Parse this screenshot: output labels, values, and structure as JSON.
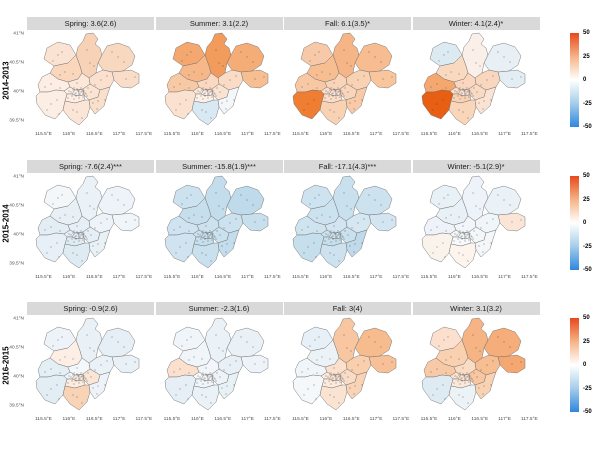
{
  "colors": {
    "background": "#FFFFFF",
    "strip_bg": "#D9D9D9",
    "strip_text": "#1A1A1A",
    "axis_text": "#4D4D4D",
    "row_label": "#000000",
    "map_border": "#6E6E6E",
    "dot": "#3A3A3A",
    "bar_high": "#E8481B",
    "bar_mid": "#FFFFFF",
    "bar_low": "#2F86DF"
  },
  "x_ticks": [
    "115.5°E",
    "116°E",
    "116.5°E",
    "117°E",
    "117.5°E"
  ],
  "y_ticks": [
    "41°N",
    "40.5°N",
    "40°N",
    "39.5°N"
  ],
  "colorbar": {
    "ticks": [
      "50",
      "25",
      "0",
      "-25",
      "-50"
    ]
  },
  "districts": [
    "yanqing",
    "huairou",
    "miyun",
    "pinggu",
    "changping",
    "shunyi",
    "mentougou",
    "haidian",
    "shijingshan",
    "xicheng",
    "dongcheng",
    "chaoyang",
    "fengtai",
    "tongzhou",
    "fangshan",
    "daxing"
  ],
  "rows": [
    {
      "label": "2014-2013",
      "panels": [
        {
          "title": "Spring: 3.6(2.6)",
          "fills": [
            "#FBE3D3",
            "#F8D2B6",
            "#F9D8C0",
            "#FADDC9",
            "#F9D6BC",
            "#FBE0CE",
            "#FDEDE2",
            "#FCE7D8",
            "#FDF0E8",
            "#FDF2EB",
            "#FDF2EB",
            "#FBE4D3",
            "#FDEDE2",
            "#FADFCB",
            "#FDEEE4",
            "#FBE5D6"
          ]
        },
        {
          "title": "Summer: 3.1(2.2)",
          "fills": [
            "#F4A76F",
            "#F19B5D",
            "#F5AD78",
            "#F7BE92",
            "#F6B889",
            "#FADCC6",
            "#F8C9A5",
            "#FAD9C0",
            "#FCE8DA",
            "#FDEFE6",
            "#FDEFE6",
            "#FBE3D2",
            "#FDF0E7",
            "#F3F7FA",
            "#FBE2D0",
            "#D9E9F3"
          ]
        },
        {
          "title": "Fall: 6.1(3.5)*",
          "fills": [
            "#F8C9A8",
            "#F6B586",
            "#F7BD90",
            "#F8C59C",
            "#F7BE92",
            "#F9D2B4",
            "#F8C8A4",
            "#F9D4B9",
            "#FBDFCB",
            "#FBE2D1",
            "#FBE2D1",
            "#F9D5BB",
            "#FADCC7",
            "#F8CAA8",
            "#EF7E33",
            "#F9D2B3"
          ]
        },
        {
          "title": "Winter: 4.1(2.4)*",
          "fills": [
            "#DCEAF2",
            "#FBF0E9",
            "#E8F0F5",
            "#E3EDF4",
            "#FAD9C1",
            "#F9D7BE",
            "#F4A76E",
            "#F9D6BD",
            "#FADCC7",
            "#FBE1CF",
            "#FBE1CF",
            "#FADAC3",
            "#F9D2B4",
            "#FBE3D3",
            "#E85E13",
            "#F9D5B9"
          ]
        }
      ]
    },
    {
      "label": "2015-2014",
      "panels": [
        {
          "title": "Spring: -7.6(2.4)***",
          "fills": [
            "#F3F7FA",
            "#EBF2F7",
            "#EDF3F8",
            "#EFF5F9",
            "#E8F0F6",
            "#EDF3F8",
            "#E2EDF4",
            "#E6EFF5",
            "#E4EEF5",
            "#E2EDF4",
            "#E2EDF4",
            "#E6EFF6",
            "#DFEBF3",
            "#E8F1F6",
            "#E7F0F6",
            "#DFEBF3"
          ]
        },
        {
          "title": "Summer: -15.8(1.9)***",
          "fills": [
            "#CCE2EF",
            "#C3DDEC",
            "#BFDAEB",
            "#C8E0EE",
            "#C7DFED",
            "#CCE2EF",
            "#CFE4F0",
            "#CCE2EF",
            "#CAE1EE",
            "#C8E0EE",
            "#C8E0EE",
            "#CAE1EE",
            "#C6DFED",
            "#C3DDEC",
            "#CFE4F0",
            "#C9E0EE"
          ]
        },
        {
          "title": "Fall: -17.1(4.3)***",
          "fills": [
            "#CEE3F0",
            "#C9E1EE",
            "#CCE2EF",
            "#D2E5F1",
            "#CCE2EF",
            "#D5E7F1",
            "#D0E4F0",
            "#D2E5F1",
            "#CEE3F0",
            "#CCE2EF",
            "#CCE2EF",
            "#C9E1EE",
            "#C6DFED",
            "#BFDAEB",
            "#C6DFED",
            "#CCE2EF"
          ]
        },
        {
          "title": "Winter: -5.1(2.9)*",
          "fills": [
            "#E8F1F6",
            "#EDF3F8",
            "#EAF2F7",
            "#FBE5D6",
            "#E8F1F6",
            "#EFF5F9",
            "#EDF3F8",
            "#F2F6FA",
            "#F3F7FA",
            "#F5F8FB",
            "#F5F8FB",
            "#F3F7FA",
            "#F7F9FC",
            "#F3F7FA",
            "#FAF3EC",
            "#FDF4ED"
          ]
        }
      ]
    },
    {
      "label": "2016-2015",
      "panels": [
        {
          "title": "Spring: -0.9(2.6)",
          "fills": [
            "#EDF3F8",
            "#E9F1F7",
            "#E6EFF6",
            "#E9F1F7",
            "#FDEFE5",
            "#EAF2F7",
            "#E4EEF5",
            "#F4F8FA",
            "#EFF5F9",
            "#FCEADD",
            "#FCEADD",
            "#FBE5D5",
            "#FCEBDF",
            "#EDF3F8",
            "#E2EDF4",
            "#F9D3B5"
          ]
        },
        {
          "title": "Summer: -2.3(1.6)",
          "fills": [
            "#F0F5F9",
            "#EBF2F7",
            "#E9F1F7",
            "#EDF3F8",
            "#EFF5F9",
            "#E8F0F6",
            "#FBE0CD",
            "#F2F6FA",
            "#F6F9FB",
            "#F3F7FA",
            "#F3F7FA",
            "#EDF3F8",
            "#EFF5F9",
            "#E8F1F6",
            "#E6EFF5",
            "#EAF2F7"
          ]
        },
        {
          "title": "Fall: 3(4)",
          "fills": [
            "#E7F0F6",
            "#F8C7A2",
            "#F7BC8E",
            "#F7C096",
            "#ECF3F7",
            "#F9CFAE",
            "#F0F5F9",
            "#FBE0CD",
            "#FCE9DB",
            "#FBE4D4",
            "#FBE4D4",
            "#FADCC6",
            "#FCEADD",
            "#F9D3B6",
            "#F4F8FA",
            "#FBE3D2"
          ]
        },
        {
          "title": "Winter: 3.1(3.2)",
          "fills": [
            "#FBE0CE",
            "#F6B383",
            "#F5AD79",
            "#F4A770",
            "#F9D0B0",
            "#F7BE92",
            "#F8C9A6",
            "#FADBC4",
            "#FBE0CE",
            "#FBE2D1",
            "#FBE2D1",
            "#F8C7A2",
            "#FCE8D9",
            "#F9D2B4",
            "#DFEBF3",
            "#ECF3F7"
          ]
        }
      ]
    }
  ],
  "chart_data": {
    "type": "heatmap",
    "subtype": "choropleth-facet-grid",
    "region": "Beijing districts",
    "facet_rows": [
      "2014-2013",
      "2015-2014",
      "2016-2015"
    ],
    "facet_cols": [
      "Spring",
      "Summer",
      "Fall",
      "Winter"
    ],
    "cell_labels": [
      [
        "Spring: 3.6(2.6)",
        "Summer: 3.1(2.2)",
        "Fall: 6.1(3.5)*",
        "Winter: 4.1(2.4)*"
      ],
      [
        "Spring: -7.6(2.4)***",
        "Summer: -15.8(1.9)***",
        "Fall: -17.1(4.3)***",
        "Winter: -5.1(2.9)*"
      ],
      [
        "Spring: -0.9(2.6)",
        "Summer: -2.3(1.6)",
        "Fall: 3(4)",
        "Winter: 3.1(3.2)"
      ]
    ],
    "estimates": [
      [
        3.6,
        3.1,
        6.1,
        4.1
      ],
      [
        -7.6,
        -15.8,
        -17.1,
        -5.1
      ],
      [
        -0.9,
        -2.3,
        3,
        3.1
      ]
    ],
    "uncertainties": [
      [
        2.6,
        2.2,
        3.5,
        2.4
      ],
      [
        2.4,
        1.9,
        4.3,
        2.9
      ],
      [
        2.6,
        1.6,
        4,
        3.2
      ]
    ],
    "significance": [
      [
        "",
        "",
        "*",
        "*"
      ],
      [
        "***",
        "***",
        "***",
        "*"
      ],
      [
        "",
        "",
        "",
        ""
      ]
    ],
    "x_axis_ticks": [
      "115.5°E",
      "116°E",
      "116.5°E",
      "117°E",
      "117.5°E"
    ],
    "y_axis_ticks": [
      "41°N",
      "40.5°N",
      "40°N",
      "39.5°N"
    ],
    "colorbar": {
      "range": [
        -50,
        50
      ],
      "ticks": [
        50,
        25,
        0,
        -25,
        -50
      ],
      "position": "right",
      "high_color": "#E8481B",
      "mid_color": "#FFFFFF",
      "low_color": "#2F86DF"
    },
    "grid": false,
    "legend_position": "right"
  }
}
